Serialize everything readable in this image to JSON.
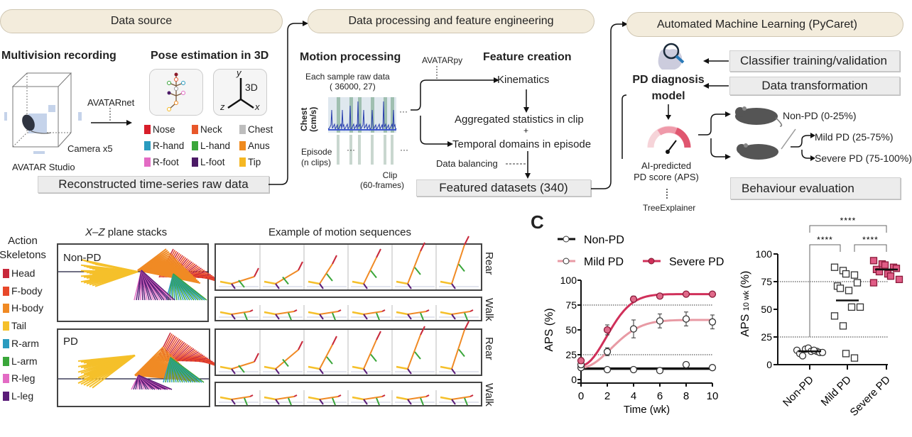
{
  "panel_a": {
    "data_source": {
      "header": "Data source",
      "recording_title": "Multivision recording",
      "network_label": "AVATARnet",
      "camera_label": "Camera x5",
      "studio_label": "AVATAR Studio",
      "pose_title": "Pose estimation in 3D",
      "axes": {
        "y": "y",
        "z": "z",
        "x": "x",
        "label": "3D"
      },
      "keypoints": [
        {
          "label": "Nose",
          "color": "#d81e2a"
        },
        {
          "label": "Neck",
          "color": "#e8572a"
        },
        {
          "label": "Chest",
          "color": "#bdbdbd"
        },
        {
          "label": "R-hand",
          "color": "#2a9bbf"
        },
        {
          "label": "L-hand",
          "color": "#3aa63a"
        },
        {
          "label": "Anus",
          "color": "#ef8a1e"
        },
        {
          "label": "R-foot",
          "color": "#e36bc4"
        },
        {
          "label": "L-foot",
          "color": "#4b1a66"
        },
        {
          "label": "Tip",
          "color": "#f5b722"
        }
      ],
      "output_box": "Reconstructed time-series raw data"
    },
    "processing": {
      "header": "Data processing and feature engineering",
      "motion_title": "Motion processing",
      "sample_label": "Each sample raw data",
      "sample_shape": "( 36000, 27)",
      "signal_ylabel_1": "Chest",
      "signal_ylabel_2": "(cm/s)",
      "episode_label_1": "Episode",
      "episode_label_2": "(n clips)",
      "clip_label_1": "Clip",
      "clip_label_2": "(60-frames)",
      "ellipsis": "···",
      "tool_label": "AVATARpy",
      "feature_title": "Feature creation",
      "kinematics": "Kinematics",
      "aggregated": "Aggregated statistics in clip",
      "plus": "+",
      "temporal": "Temporal domains in episode",
      "balancing": "Data balancing",
      "output_box": "Featured datasets (340)"
    },
    "automl": {
      "header": "Automated Machine Learning (PyCaret)",
      "model_title_1": "PD diagnosis",
      "model_title_2": "model",
      "training_box": "Classifier training/validation",
      "transform_box": "Data transformation",
      "score_label_1": "AI-predicted",
      "score_label_2": "PD score (APS)",
      "explainer": "TreeExplainer",
      "classes": [
        "Non-PD (0-25%)",
        "Mild PD (25-75%)",
        "Severe PD (75-100%)"
      ],
      "evaluation_box": "Behaviour evaluation",
      "gauge_color": "#e0566f"
    }
  },
  "panel_b": {
    "legend_title_1": "Action",
    "legend_title_2": "Skeletons",
    "parts": [
      {
        "label": "Head",
        "color": "#c8283a"
      },
      {
        "label": "F-body",
        "color": "#e8482a"
      },
      {
        "label": "H-body",
        "color": "#f08a24"
      },
      {
        "label": "Tail",
        "color": "#f5c02a"
      },
      {
        "label": "R-arm",
        "color": "#2a9bbf"
      },
      {
        "label": "L-arm",
        "color": "#3aa63a"
      },
      {
        "label": "R-leg",
        "color": "#e36bc4"
      },
      {
        "label": "L-leg",
        "color": "#5a1c78"
      }
    ],
    "stacks_title_x": "X",
    "stacks_title_dash": "–",
    "stacks_title_z": "Z",
    "stacks_title_rest": " plane stacks",
    "groups": [
      "Non-PD",
      "PD"
    ],
    "sequences_title": "Example of motion sequences",
    "actions": [
      "Rear",
      "Walk",
      "Rear",
      "Walk"
    ]
  },
  "panel_c": {
    "label": "C",
    "significance": [
      "****",
      "****",
      "****"
    ]
  },
  "chart_data": [
    {
      "type": "line",
      "xlabel": "Time  (wk)",
      "ylabel": "APS (%)",
      "x": [
        0,
        2,
        4,
        6,
        8,
        10
      ],
      "xlim": [
        0,
        10
      ],
      "ylim": [
        0,
        100
      ],
      "xticks": [
        "0",
        "2",
        "4",
        "6",
        "8",
        "10"
      ],
      "yticks": [
        "0",
        "25",
        "50",
        "75",
        "100"
      ],
      "reference_lines": [
        25,
        75
      ],
      "legend": "top",
      "series": [
        {
          "name": "Non-PD",
          "color": "#111111",
          "values": [
            12,
            10,
            10,
            9,
            15,
            12
          ],
          "error": [
            1,
            1,
            1,
            1,
            1,
            1
          ]
        },
        {
          "name": "Mild PD",
          "color": "#e89aa4",
          "values": [
            15,
            28,
            51,
            59,
            61,
            58
          ],
          "error": [
            3,
            4,
            9,
            7,
            7,
            7
          ]
        },
        {
          "name": "Severe PD",
          "color": "#d0305a",
          "values": [
            19,
            50,
            81,
            84,
            86,
            86
          ],
          "error": [
            3,
            5,
            3,
            2,
            1,
            1
          ]
        }
      ]
    },
    {
      "type": "scatter",
      "ylabel_main": "APS",
      "ylabel_sub": "10 wk",
      "ylabel_unit": "(%)",
      "categories": [
        "Non-PD",
        "Mild PD",
        "Severe PD"
      ],
      "ylim": [
        0,
        100
      ],
      "yticks": [
        "0",
        "25",
        "50",
        "75",
        "100"
      ],
      "reference_lines": [
        25,
        75
      ],
      "series": [
        {
          "name": "Non-PD",
          "marker": "circle-open",
          "mean": 12,
          "values": [
            13,
            14,
            15,
            12,
            11,
            10,
            8,
            12,
            13,
            11
          ]
        },
        {
          "name": "Mild PD",
          "marker": "square-open",
          "mean": 58,
          "values": [
            88,
            85,
            82,
            81,
            74,
            71,
            69,
            67,
            52,
            52,
            44,
            35,
            10,
            6
          ]
        },
        {
          "name": "Severe PD",
          "marker": "square-filled",
          "color": "#e05c86",
          "mean": 86,
          "values": [
            94,
            91,
            90,
            88,
            87,
            86,
            84,
            82,
            80,
            77,
            74
          ]
        }
      ]
    }
  ]
}
